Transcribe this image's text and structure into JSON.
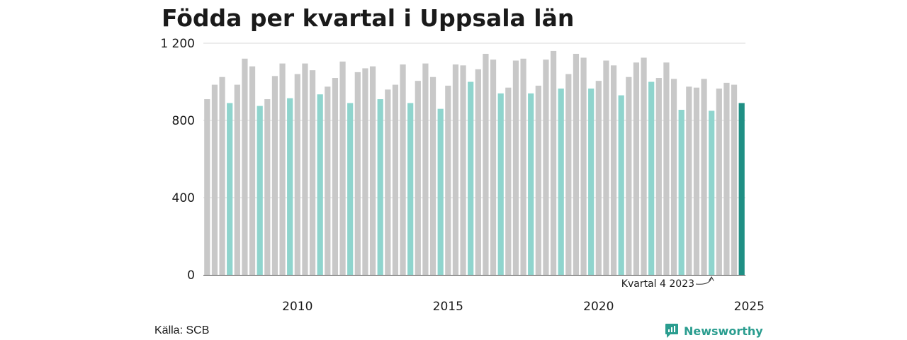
{
  "colors": {
    "regular": "#c8c8c8",
    "quarter4": "#8fd4cd",
    "latest": "#1f8f84",
    "grid": "#d9d9d9",
    "text": "#1a1a1a",
    "brand": "#2a9d8f"
  },
  "chart_data": {
    "type": "bar",
    "title": "Födda per kvartal i Uppsala län",
    "xlabel": "",
    "ylabel": "",
    "ylim": [
      0,
      1200
    ],
    "yticks": [
      0,
      400,
      800,
      1200
    ],
    "ytick_labels": [
      "0",
      "400",
      "800",
      "1 200"
    ],
    "x_tick_labels": [
      {
        "label": "2010",
        "year": 2010
      },
      {
        "label": "2015",
        "year": 2015
      },
      {
        "label": "2020",
        "year": 2020
      },
      {
        "label": "2025",
        "year": 2025
      }
    ],
    "grid": true,
    "start": {
      "year": 2007,
      "quarter": 1
    },
    "values": [
      910,
      985,
      1025,
      890,
      985,
      1120,
      1080,
      875,
      910,
      1030,
      1095,
      915,
      1040,
      1095,
      1060,
      935,
      975,
      1020,
      1105,
      890,
      1050,
      1070,
      1080,
      910,
      960,
      985,
      1090,
      890,
      1005,
      1095,
      1025,
      860,
      980,
      1090,
      1085,
      1000,
      1065,
      1145,
      1115,
      940,
      970,
      1110,
      1120,
      940,
      980,
      1115,
      1160,
      965,
      1040,
      1145,
      1125,
      965,
      1005,
      1110,
      1085,
      930,
      1025,
      1100,
      1125,
      1000,
      1020,
      1100,
      1015,
      855,
      975,
      970,
      1015,
      850,
      965,
      995,
      985,
      890
    ],
    "annotation": {
      "text": "Kvartal 4 2023",
      "year": 2023,
      "quarter": 4
    }
  },
  "footer": {
    "source": "Källa: SCB",
    "brand": "Newsworthy",
    "brand_icon": "newsworthy-logo-icon"
  }
}
